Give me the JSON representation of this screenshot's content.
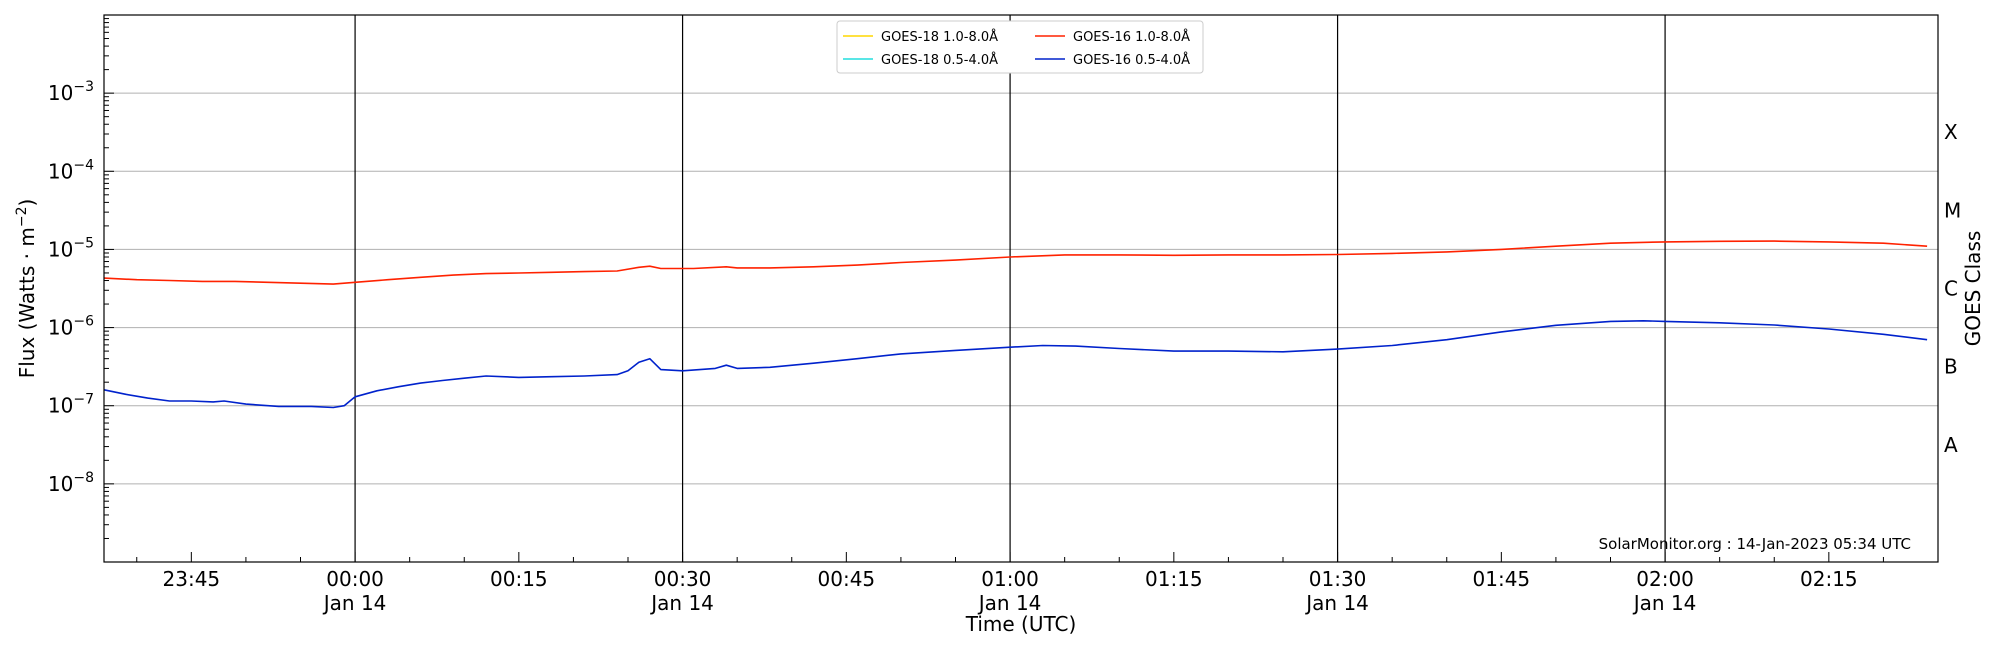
{
  "chart_data": {
    "type": "line",
    "xlabel": "Time (UTC)",
    "ylabel": "Flux (Watts · m",
    "ylabel_sup": "−2",
    "ylabel_close": ")",
    "right_label": "GOES Class",
    "yscale": "log",
    "ylim": [
      1e-09,
      0.01
    ],
    "xlim": [
      "2023-01-13 23:37",
      "2023-01-14 02:25"
    ],
    "grid_horizontal": true,
    "legend_position": "top-center",
    "watermark": "SolarMonitor.org : 14-Jan-2023 05:34 UTC",
    "y_ticks": [
      {
        "value": 1e-08,
        "base": "10",
        "exp": "−8"
      },
      {
        "value": 1e-07,
        "base": "10",
        "exp": "−7"
      },
      {
        "value": 1e-06,
        "base": "10",
        "exp": "−6"
      },
      {
        "value": 1e-05,
        "base": "10",
        "exp": "−5"
      },
      {
        "value": 0.0001,
        "base": "10",
        "exp": "−4"
      },
      {
        "value": 0.001,
        "base": "10",
        "exp": "−3"
      }
    ],
    "x_ticks": [
      {
        "time": "2023-01-13 23:45",
        "label": "23:45",
        "sublabel": ""
      },
      {
        "time": "2023-01-14 00:00",
        "label": "00:00",
        "sublabel": "Jan 14"
      },
      {
        "time": "2023-01-14 00:15",
        "label": "00:15",
        "sublabel": ""
      },
      {
        "time": "2023-01-14 00:30",
        "label": "00:30",
        "sublabel": "Jan 14"
      },
      {
        "time": "2023-01-14 00:45",
        "label": "00:45",
        "sublabel": ""
      },
      {
        "time": "2023-01-14 01:00",
        "label": "01:00",
        "sublabel": "Jan 14"
      },
      {
        "time": "2023-01-14 01:15",
        "label": "01:15",
        "sublabel": ""
      },
      {
        "time": "2023-01-14 01:30",
        "label": "01:30",
        "sublabel": "Jan 14"
      },
      {
        "time": "2023-01-14 01:45",
        "label": "01:45",
        "sublabel": ""
      },
      {
        "time": "2023-01-14 02:00",
        "label": "02:00",
        "sublabel": "Jan 14"
      },
      {
        "time": "2023-01-14 02:15",
        "label": "02:15",
        "sublabel": ""
      }
    ],
    "vertical_lines": [
      "2023-01-14 00:00",
      "2023-01-14 00:30",
      "2023-01-14 01:00",
      "2023-01-14 01:30",
      "2023-01-14 02:00"
    ],
    "goes_classes": [
      {
        "label": "A",
        "low": 1e-08,
        "high": 1e-07
      },
      {
        "label": "B",
        "low": 1e-07,
        "high": 1e-06
      },
      {
        "label": "C",
        "low": 1e-06,
        "high": 1e-05
      },
      {
        "label": "M",
        "low": 1e-05,
        "high": 0.0001
      },
      {
        "label": "X",
        "low": 0.0001,
        "high": 0.001
      }
    ],
    "legend": [
      {
        "name": "GOES-18 1.0-8.0Å",
        "color": "#ffd700"
      },
      {
        "name": "GOES-16 1.0-8.0Å",
        "color": "#ff2200"
      },
      {
        "name": "GOES-18 0.5-4.0Å",
        "color": "#22dddd"
      },
      {
        "name": "GOES-16 0.5-4.0Å",
        "color": "#0022cc"
      }
    ],
    "series": [
      {
        "name": "GOES-16 1.0-8.0Å",
        "color": "#ff2200",
        "points": [
          [
            "2023-01-13 23:37",
            4.3e-06
          ],
          [
            "2023-01-13 23:40",
            4.1e-06
          ],
          [
            "2023-01-13 23:43",
            4e-06
          ],
          [
            "2023-01-13 23:46",
            3.9e-06
          ],
          [
            "2023-01-13 23:49",
            3.9e-06
          ],
          [
            "2023-01-13 23:52",
            3.8e-06
          ],
          [
            "2023-01-13 23:55",
            3.7e-06
          ],
          [
            "2023-01-13 23:58",
            3.6e-06
          ],
          [
            "2023-01-14 00:00",
            3.8e-06
          ],
          [
            "2023-01-14 00:03",
            4.1e-06
          ],
          [
            "2023-01-14 00:06",
            4.4e-06
          ],
          [
            "2023-01-14 00:09",
            4.7e-06
          ],
          [
            "2023-01-14 00:12",
            4.9e-06
          ],
          [
            "2023-01-14 00:15",
            5e-06
          ],
          [
            "2023-01-14 00:18",
            5.1e-06
          ],
          [
            "2023-01-14 00:21",
            5.2e-06
          ],
          [
            "2023-01-14 00:24",
            5.3e-06
          ],
          [
            "2023-01-14 00:26",
            5.9e-06
          ],
          [
            "2023-01-14 00:27",
            6.1e-06
          ],
          [
            "2023-01-14 00:28",
            5.7e-06
          ],
          [
            "2023-01-14 00:31",
            5.7e-06
          ],
          [
            "2023-01-14 00:34",
            6e-06
          ],
          [
            "2023-01-14 00:35",
            5.8e-06
          ],
          [
            "2023-01-14 00:38",
            5.8e-06
          ],
          [
            "2023-01-14 00:42",
            6e-06
          ],
          [
            "2023-01-14 00:46",
            6.3e-06
          ],
          [
            "2023-01-14 00:50",
            6.8e-06
          ],
          [
            "2023-01-14 00:55",
            7.3e-06
          ],
          [
            "2023-01-14 01:00",
            8e-06
          ],
          [
            "2023-01-14 01:05",
            8.5e-06
          ],
          [
            "2023-01-14 01:10",
            8.5e-06
          ],
          [
            "2023-01-14 01:15",
            8.4e-06
          ],
          [
            "2023-01-14 01:20",
            8.5e-06
          ],
          [
            "2023-01-14 01:25",
            8.5e-06
          ],
          [
            "2023-01-14 01:30",
            8.6e-06
          ],
          [
            "2023-01-14 01:35",
            8.9e-06
          ],
          [
            "2023-01-14 01:40",
            9.3e-06
          ],
          [
            "2023-01-14 01:45",
            1e-05
          ],
          [
            "2023-01-14 01:50",
            1.1e-05
          ],
          [
            "2023-01-14 01:55",
            1.2e-05
          ],
          [
            "2023-01-14 02:00",
            1.25e-05
          ],
          [
            "2023-01-14 02:05",
            1.27e-05
          ],
          [
            "2023-01-14 02:10",
            1.28e-05
          ],
          [
            "2023-01-14 02:15",
            1.25e-05
          ],
          [
            "2023-01-14 02:20",
            1.2e-05
          ],
          [
            "2023-01-14 02:24",
            1.1e-05
          ]
        ]
      },
      {
        "name": "GOES-16 0.5-4.0Å",
        "color": "#0022cc",
        "points": [
          [
            "2023-01-13 23:37",
            1.6e-07
          ],
          [
            "2023-01-13 23:39",
            1.4e-07
          ],
          [
            "2023-01-13 23:41",
            1.25e-07
          ],
          [
            "2023-01-13 23:43",
            1.15e-07
          ],
          [
            "2023-01-13 23:45",
            1.15e-07
          ],
          [
            "2023-01-13 23:47",
            1.12e-07
          ],
          [
            "2023-01-13 23:48",
            1.15e-07
          ],
          [
            "2023-01-13 23:50",
            1.05e-07
          ],
          [
            "2023-01-13 23:53",
            9.8e-08
          ],
          [
            "2023-01-13 23:56",
            9.8e-08
          ],
          [
            "2023-01-13 23:58",
            9.5e-08
          ],
          [
            "2023-01-13 23:59",
            1e-07
          ],
          [
            "2023-01-14 00:00",
            1.3e-07
          ],
          [
            "2023-01-14 00:02",
            1.55e-07
          ],
          [
            "2023-01-14 00:04",
            1.75e-07
          ],
          [
            "2023-01-14 00:06",
            1.95e-07
          ],
          [
            "2023-01-14 00:08",
            2.1e-07
          ],
          [
            "2023-01-14 00:10",
            2.25e-07
          ],
          [
            "2023-01-14 00:12",
            2.4e-07
          ],
          [
            "2023-01-14 00:15",
            2.3e-07
          ],
          [
            "2023-01-14 00:18",
            2.35e-07
          ],
          [
            "2023-01-14 00:21",
            2.4e-07
          ],
          [
            "2023-01-14 00:24",
            2.5e-07
          ],
          [
            "2023-01-14 00:25",
            2.8e-07
          ],
          [
            "2023-01-14 00:26",
            3.6e-07
          ],
          [
            "2023-01-14 00:27",
            4e-07
          ],
          [
            "2023-01-14 00:28",
            2.9e-07
          ],
          [
            "2023-01-14 00:30",
            2.8e-07
          ],
          [
            "2023-01-14 00:33",
            3e-07
          ],
          [
            "2023-01-14 00:34",
            3.3e-07
          ],
          [
            "2023-01-14 00:35",
            3e-07
          ],
          [
            "2023-01-14 00:38",
            3.1e-07
          ],
          [
            "2023-01-14 00:42",
            3.5e-07
          ],
          [
            "2023-01-14 00:46",
            4e-07
          ],
          [
            "2023-01-14 00:50",
            4.6e-07
          ],
          [
            "2023-01-14 00:55",
            5.1e-07
          ],
          [
            "2023-01-14 01:00",
            5.6e-07
          ],
          [
            "2023-01-14 01:03",
            5.9e-07
          ],
          [
            "2023-01-14 01:06",
            5.8e-07
          ],
          [
            "2023-01-14 01:10",
            5.4e-07
          ],
          [
            "2023-01-14 01:15",
            5e-07
          ],
          [
            "2023-01-14 01:20",
            5e-07
          ],
          [
            "2023-01-14 01:25",
            4.9e-07
          ],
          [
            "2023-01-14 01:30",
            5.3e-07
          ],
          [
            "2023-01-14 01:35",
            5.9e-07
          ],
          [
            "2023-01-14 01:40",
            7e-07
          ],
          [
            "2023-01-14 01:45",
            8.8e-07
          ],
          [
            "2023-01-14 01:50",
            1.07e-06
          ],
          [
            "2023-01-14 01:55",
            1.2e-06
          ],
          [
            "2023-01-14 01:58",
            1.22e-06
          ],
          [
            "2023-01-14 02:00",
            1.2e-06
          ],
          [
            "2023-01-14 02:05",
            1.15e-06
          ],
          [
            "2023-01-14 02:10",
            1.08e-06
          ],
          [
            "2023-01-14 02:15",
            9.6e-07
          ],
          [
            "2023-01-14 02:20",
            8.2e-07
          ],
          [
            "2023-01-14 02:24",
            7e-07
          ]
        ]
      }
    ]
  }
}
